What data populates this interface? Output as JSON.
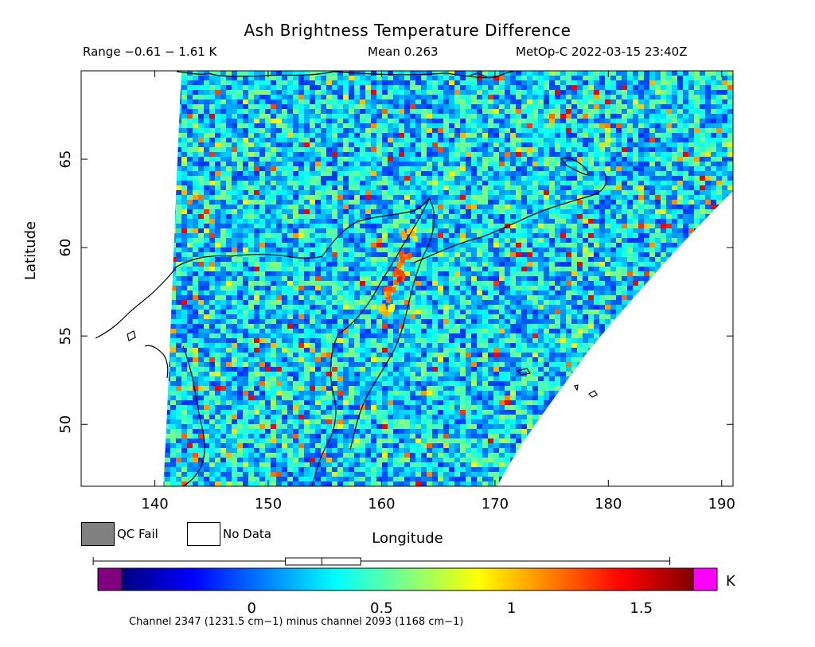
{
  "header": {
    "title": "Ash Brightness Temperature Difference",
    "range": "Range −0.61 − 1.61 K",
    "mean": "Mean 0.263",
    "satellite": "MetOp-C 2022-03-15 23:40Z"
  },
  "legend": {
    "qc_fail": "QC Fail",
    "no_data": "No Data",
    "qc_color": "#808080",
    "nodata_color": "#ffffff",
    "under_color": "#800080",
    "over_color": "#ff00ff"
  },
  "colorbar": {
    "unit": "K",
    "min": -0.5,
    "max": 1.7,
    "ticks": [
      0,
      0.5,
      1,
      1.5
    ],
    "tick_labels": [
      "0",
      "0.5",
      "1",
      "1.5"
    ],
    "boxplot": {
      "whisker_low": -0.61,
      "q1": 0.13,
      "median": 0.27,
      "q3": 0.42,
      "whisker_high": 1.61
    }
  },
  "footer": "Channel 2347 (1231.5 cm−1) minus channel 2093 (1168 cm−1)",
  "chart_data": {
    "type": "heatmap",
    "title": "Ash Brightness Temperature Difference",
    "xlabel": "Longitude",
    "ylabel": "Latitude",
    "xlim": [
      133.5,
      191
    ],
    "ylim": [
      46.5,
      70
    ],
    "xticks": [
      140,
      150,
      160,
      170,
      180,
      190
    ],
    "yticks": [
      50,
      55,
      60,
      65
    ],
    "value_range": [
      -0.61,
      1.61
    ],
    "mean": 0.263,
    "unit": "K",
    "colormap": "jet",
    "ash_plume": [
      {
        "lon": 162.2,
        "lat": 61.0,
        "value": 1.1
      },
      {
        "lon": 161.8,
        "lat": 59.5,
        "value": 1.3
      },
      {
        "lon": 161.2,
        "lat": 58.5,
        "value": 1.4
      },
      {
        "lon": 160.6,
        "lat": 57.5,
        "value": 1.3
      },
      {
        "lon": 160.2,
        "lat": 56.5,
        "value": 1.1
      }
    ]
  }
}
